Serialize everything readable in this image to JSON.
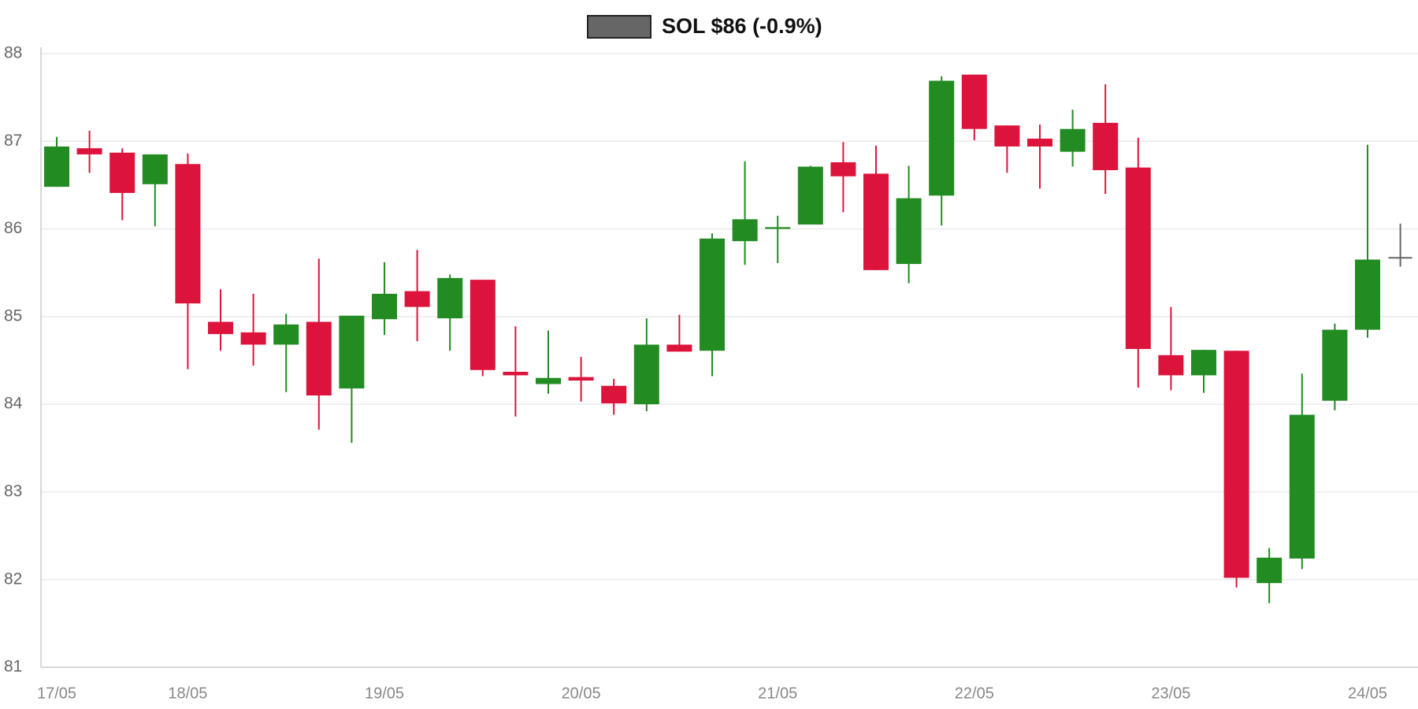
{
  "chart_data": {
    "type": "candlestick",
    "categories": [
      "17/05",
      null,
      null,
      null,
      "18/05",
      null,
      null,
      null,
      null,
      null,
      "19/05",
      null,
      null,
      null,
      null,
      null,
      "20/05",
      null,
      null,
      null,
      null,
      null,
      "21/05",
      null,
      null,
      null,
      null,
      null,
      "22/05",
      null,
      null,
      null,
      null,
      null,
      "23/05",
      null,
      null,
      null,
      null,
      null,
      "24/05",
      null
    ],
    "series": [
      {
        "name": "SOL $86 (-0.9%)",
        "color": "#666666",
        "open": [
          86.48,
          86.92,
          86.87,
          86.51,
          86.74,
          84.94,
          84.82,
          84.68,
          84.94,
          84.18,
          84.97,
          85.29,
          84.98,
          85.42,
          84.37,
          84.23,
          84.31,
          84.21,
          84.0,
          84.68,
          84.61,
          85.86,
          86.0,
          86.05,
          86.76,
          86.63,
          85.6,
          86.38,
          87.76,
          87.18,
          87.03,
          86.88,
          87.21,
          86.7,
          84.56,
          84.33,
          84.61,
          81.96,
          82.24,
          84.04,
          84.85,
          85.67
        ],
        "high": [
          87.05,
          87.12,
          86.92,
          86.85,
          86.86,
          85.31,
          85.26,
          85.03,
          85.66,
          85.01,
          85.62,
          85.76,
          85.48,
          85.42,
          84.89,
          84.84,
          84.54,
          84.29,
          84.98,
          85.02,
          85.95,
          86.77,
          86.15,
          86.72,
          86.99,
          86.95,
          86.72,
          87.74,
          87.76,
          87.18,
          87.19,
          87.36,
          87.65,
          87.04,
          85.11,
          84.62,
          84.61,
          82.36,
          84.35,
          84.92,
          86.96,
          86.06
        ],
        "low": [
          86.48,
          86.64,
          86.1,
          86.03,
          84.4,
          84.61,
          84.44,
          84.14,
          83.71,
          83.56,
          84.79,
          84.72,
          84.61,
          84.32,
          83.86,
          84.12,
          84.03,
          83.88,
          83.92,
          84.6,
          84.32,
          85.59,
          85.61,
          86.05,
          86.19,
          85.53,
          85.38,
          86.04,
          87.01,
          86.64,
          86.46,
          86.71,
          86.4,
          84.19,
          84.16,
          84.13,
          81.91,
          81.73,
          82.12,
          83.93,
          84.76,
          85.57
        ],
        "close": [
          86.94,
          86.85,
          86.41,
          86.85,
          85.15,
          84.8,
          84.68,
          84.91,
          84.1,
          85.01,
          85.26,
          85.11,
          85.44,
          84.39,
          84.33,
          84.3,
          84.27,
          84.01,
          84.68,
          84.6,
          85.89,
          86.11,
          86.02,
          86.71,
          86.6,
          85.53,
          86.35,
          87.69,
          87.14,
          86.94,
          86.94,
          87.14,
          86.67,
          84.63,
          84.33,
          84.62,
          82.02,
          82.25,
          83.88,
          84.85,
          85.65,
          85.67
        ]
      }
    ],
    "up_color": "#228b22",
    "down_color": "#dc143c",
    "ylim": [
      81,
      88
    ],
    "yticks": [
      81,
      82,
      83,
      84,
      85,
      86,
      87,
      88
    ],
    "grid": true
  }
}
